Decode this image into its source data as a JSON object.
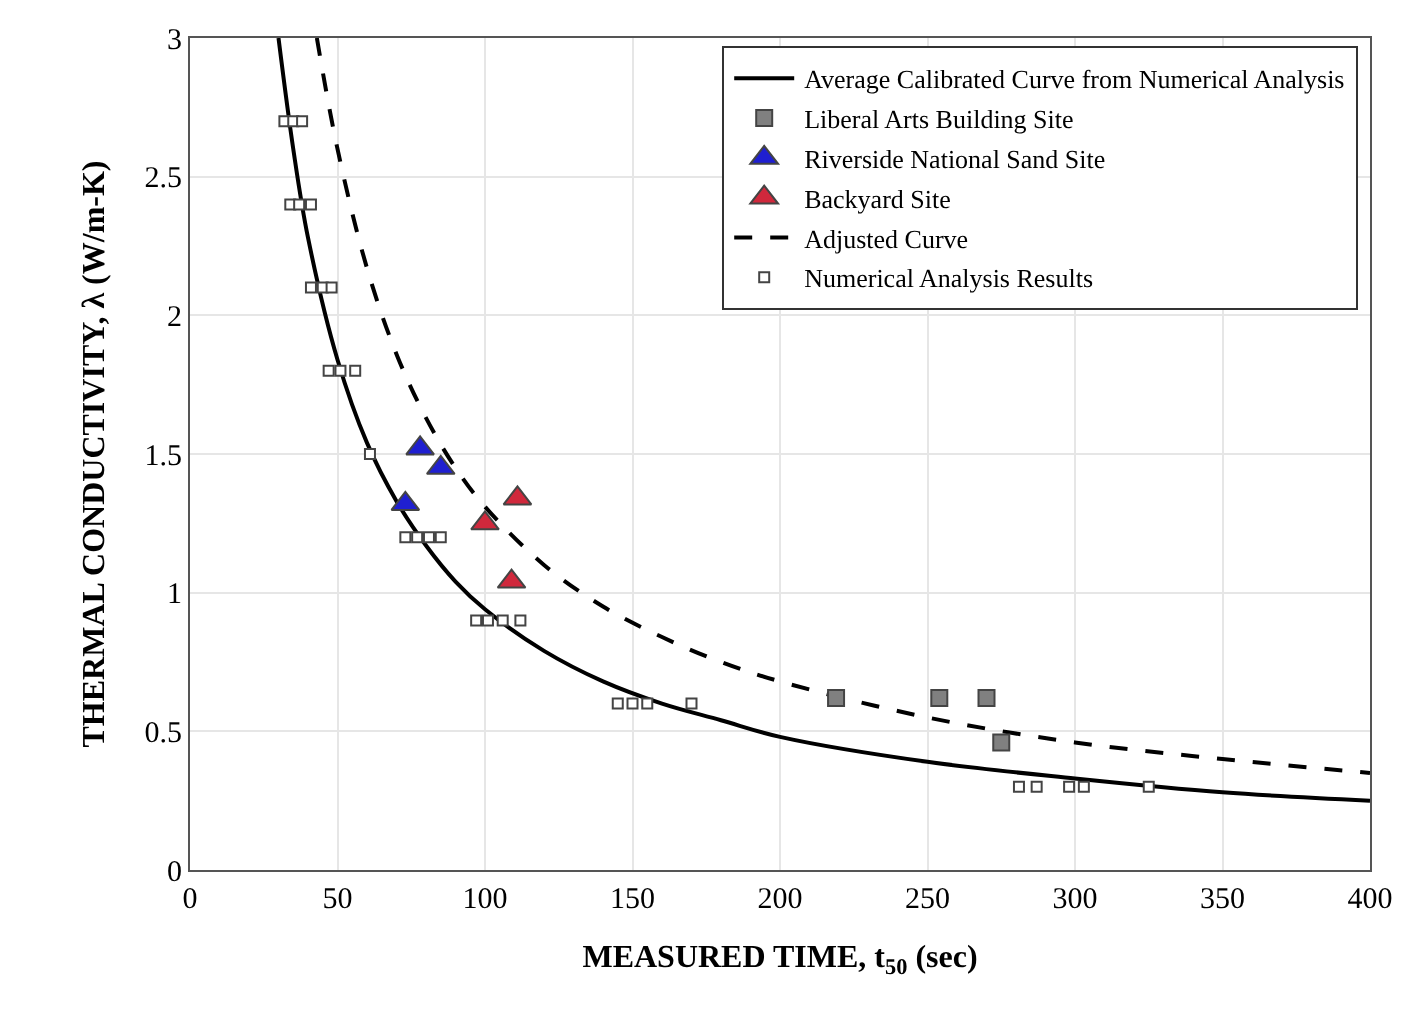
{
  "chart_data": {
    "type": "scatter",
    "xlabel": "MEASURED TIME, t$_{50}$ (sec)",
    "ylabel": "THERMAL CONDUCTIVITY, λ (W/m-K)",
    "xlim": [
      0,
      400
    ],
    "xticks": [
      0,
      50,
      100,
      150,
      200,
      250,
      300,
      350,
      400
    ],
    "ylim": [
      0,
      3
    ],
    "yticks": [
      0,
      0.5,
      1,
      1.5,
      2,
      2.5,
      3
    ],
    "grid": true,
    "legend": "top right",
    "series": [
      {
        "name": "Average Calibrated Curve from Numerical Analysis",
        "type": "line",
        "color": "#000000",
        "line_style": "solid",
        "marker": "none",
        "x": [
          30,
          35,
          40,
          50,
          60,
          70,
          80,
          90,
          100,
          120,
          140,
          160,
          180,
          200,
          250,
          300,
          350,
          400
        ],
        "values": [
          3.0,
          2.6,
          2.28,
          1.84,
          1.54,
          1.33,
          1.17,
          1.04,
          0.94,
          0.79,
          0.68,
          0.6,
          0.54,
          0.48,
          0.39,
          0.33,
          0.28,
          0.25
        ]
      },
      {
        "name": "Liberal Arts Building Site",
        "color": "#808080",
        "marker": "square",
        "x": [
          219,
          254,
          270,
          275
        ],
        "values": [
          0.62,
          0.62,
          0.62,
          0.46
        ]
      },
      {
        "name": "Riverside National Sand Site",
        "color": "#1f1fd0",
        "marker": "triangle",
        "x": [
          78,
          85,
          73
        ],
        "values": [
          1.52,
          1.45,
          1.32
        ]
      },
      {
        "name": "Backyard Site",
        "color": "#d0283c",
        "marker": "triangle",
        "x": [
          111,
          100,
          109
        ],
        "values": [
          1.34,
          1.25,
          1.04
        ]
      },
      {
        "name": "Adjusted Curve",
        "type": "line",
        "color": "#000000",
        "line_style": "dashed",
        "marker": "none",
        "x": [
          43,
          50,
          60,
          70,
          80,
          90,
          100,
          120,
          140,
          160,
          180,
          200,
          250,
          300,
          350,
          400
        ],
        "values": [
          3.0,
          2.6,
          2.17,
          1.86,
          1.63,
          1.45,
          1.31,
          1.1,
          0.95,
          0.84,
          0.75,
          0.68,
          0.55,
          0.46,
          0.4,
          0.35
        ]
      },
      {
        "name": "Numerical Analysis Results",
        "color": "#ffffff",
        "marker": "square",
        "x": [
          32,
          35,
          38,
          34,
          37,
          41,
          41,
          45,
          48,
          47,
          51,
          56,
          61,
          73,
          77,
          81,
          85,
          97,
          101,
          106,
          112,
          145,
          150,
          155,
          170,
          281,
          287,
          298,
          303,
          325
        ],
        "values": [
          2.7,
          2.7,
          2.7,
          2.4,
          2.4,
          2.4,
          2.1,
          2.1,
          2.1,
          1.8,
          1.8,
          1.8,
          1.5,
          1.2,
          1.2,
          1.2,
          1.2,
          0.9,
          0.9,
          0.9,
          0.9,
          0.6,
          0.6,
          0.6,
          0.6,
          0.3,
          0.3,
          0.3,
          0.3,
          0.3
        ]
      }
    ]
  }
}
